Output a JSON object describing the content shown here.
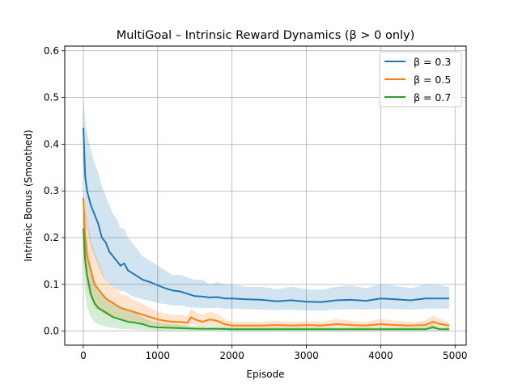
{
  "chart_data": {
    "type": "line",
    "title": "MultiGoal – Intrinsic Reward Dynamics (β > 0 only)",
    "xlabel": "Episode",
    "ylabel": "Intrinsic Bonus (Smoothed)",
    "xlim": [
      -250,
      5150
    ],
    "ylim": [
      -0.03,
      0.61
    ],
    "xticks": [
      0,
      1000,
      2000,
      3000,
      4000,
      5000
    ],
    "xtick_labels": [
      "0",
      "1000",
      "2000",
      "3000",
      "4000",
      "5000"
    ],
    "yticks": [
      0.0,
      0.1,
      0.2,
      0.3,
      0.4,
      0.5,
      0.6
    ],
    "ytick_labels": [
      "0.0",
      "0.1",
      "0.2",
      "0.3",
      "0.4",
      "0.5",
      "0.6"
    ],
    "grid": true,
    "legend_position": "top-right",
    "series": [
      {
        "name": "β = 0.3",
        "color": "#1f77b4",
        "x": [
          0,
          25,
          50,
          100,
          150,
          200,
          250,
          300,
          350,
          400,
          450,
          500,
          550,
          600,
          650,
          700,
          750,
          800,
          900,
          1000,
          1100,
          1200,
          1300,
          1400,
          1500,
          1600,
          1700,
          1800,
          1900,
          2000,
          2200,
          2400,
          2600,
          2800,
          3000,
          3200,
          3400,
          3600,
          3800,
          4000,
          4200,
          4400,
          4600,
          4800,
          4920
        ],
        "y": [
          0.435,
          0.33,
          0.3,
          0.27,
          0.25,
          0.23,
          0.2,
          0.19,
          0.17,
          0.16,
          0.15,
          0.14,
          0.145,
          0.13,
          0.125,
          0.12,
          0.115,
          0.11,
          0.105,
          0.098,
          0.092,
          0.087,
          0.085,
          0.08,
          0.075,
          0.074,
          0.072,
          0.073,
          0.07,
          0.07,
          0.068,
          0.067,
          0.064,
          0.066,
          0.063,
          0.062,
          0.066,
          0.067,
          0.065,
          0.07,
          0.068,
          0.066,
          0.07,
          0.07,
          0.07
        ],
        "lower": [
          0.38,
          0.25,
          0.22,
          0.18,
          0.16,
          0.14,
          0.12,
          0.11,
          0.1,
          0.095,
          0.09,
          0.085,
          0.085,
          0.08,
          0.075,
          0.072,
          0.07,
          0.068,
          0.065,
          0.06,
          0.058,
          0.055,
          0.055,
          0.052,
          0.05,
          0.05,
          0.049,
          0.05,
          0.048,
          0.048,
          0.047,
          0.046,
          0.045,
          0.046,
          0.044,
          0.044,
          0.046,
          0.047,
          0.046,
          0.048,
          0.047,
          0.046,
          0.048,
          0.048,
          0.048
        ],
        "upper": [
          0.5,
          0.45,
          0.42,
          0.39,
          0.36,
          0.34,
          0.31,
          0.29,
          0.27,
          0.25,
          0.24,
          0.22,
          0.22,
          0.2,
          0.19,
          0.18,
          0.17,
          0.16,
          0.15,
          0.14,
          0.13,
          0.12,
          0.12,
          0.115,
          0.11,
          0.11,
          0.1,
          0.105,
          0.1,
          0.1,
          0.095,
          0.095,
          0.09,
          0.095,
          0.09,
          0.088,
          0.095,
          0.098,
          0.092,
          0.1,
          0.097,
          0.092,
          0.1,
          0.098,
          0.095
        ]
      },
      {
        "name": "β = 0.5",
        "color": "#ff7f0e",
        "x": [
          0,
          25,
          50,
          100,
          150,
          200,
          250,
          300,
          350,
          400,
          450,
          500,
          600,
          700,
          800,
          900,
          1000,
          1100,
          1200,
          1300,
          1400,
          1450,
          1500,
          1600,
          1700,
          1800,
          1900,
          2000,
          2200,
          2400,
          2600,
          2800,
          3000,
          3200,
          3400,
          3600,
          3800,
          4000,
          4200,
          4400,
          4600,
          4700,
          4800,
          4920
        ],
        "y": [
          0.285,
          0.2,
          0.16,
          0.13,
          0.1,
          0.09,
          0.08,
          0.07,
          0.065,
          0.06,
          0.055,
          0.05,
          0.045,
          0.04,
          0.035,
          0.03,
          0.025,
          0.022,
          0.02,
          0.02,
          0.018,
          0.03,
          0.025,
          0.02,
          0.025,
          0.022,
          0.015,
          0.012,
          0.012,
          0.012,
          0.013,
          0.012,
          0.013,
          0.012,
          0.015,
          0.013,
          0.012,
          0.015,
          0.013,
          0.012,
          0.013,
          0.02,
          0.015,
          0.012
        ],
        "lower": [
          0.21,
          0.12,
          0.09,
          0.07,
          0.05,
          0.045,
          0.04,
          0.035,
          0.033,
          0.03,
          0.028,
          0.025,
          0.022,
          0.02,
          0.017,
          0.014,
          0.012,
          0.01,
          0.009,
          0.009,
          0.008,
          0.015,
          0.012,
          0.009,
          0.012,
          0.01,
          0.007,
          0.006,
          0.006,
          0.006,
          0.007,
          0.006,
          0.007,
          0.006,
          0.008,
          0.007,
          0.006,
          0.008,
          0.007,
          0.006,
          0.007,
          0.01,
          0.008,
          0.006
        ],
        "upper": [
          0.31,
          0.27,
          0.24,
          0.2,
          0.17,
          0.15,
          0.13,
          0.11,
          0.1,
          0.095,
          0.09,
          0.08,
          0.075,
          0.065,
          0.058,
          0.05,
          0.042,
          0.038,
          0.035,
          0.035,
          0.032,
          0.05,
          0.042,
          0.035,
          0.042,
          0.038,
          0.026,
          0.02,
          0.02,
          0.02,
          0.022,
          0.02,
          0.022,
          0.02,
          0.026,
          0.022,
          0.02,
          0.026,
          0.022,
          0.02,
          0.022,
          0.034,
          0.026,
          0.02
        ]
      },
      {
        "name": "β = 0.7",
        "color": "#2ca02c",
        "x": [
          0,
          25,
          50,
          100,
          150,
          200,
          250,
          300,
          350,
          400,
          500,
          600,
          700,
          800,
          900,
          1000,
          1200,
          1400,
          1600,
          1800,
          2000,
          2200,
          2400,
          2600,
          2800,
          3000,
          3200,
          3400,
          3600,
          3800,
          4000,
          4200,
          4400,
          4600,
          4700,
          4800,
          4920
        ],
        "y": [
          0.22,
          0.15,
          0.12,
          0.08,
          0.06,
          0.05,
          0.045,
          0.04,
          0.035,
          0.03,
          0.025,
          0.02,
          0.018,
          0.015,
          0.01,
          0.008,
          0.007,
          0.006,
          0.005,
          0.005,
          0.004,
          0.004,
          0.004,
          0.004,
          0.004,
          0.004,
          0.004,
          0.004,
          0.004,
          0.004,
          0.004,
          0.004,
          0.004,
          0.004,
          0.008,
          0.004,
          0.004
        ],
        "lower": [
          0.16,
          0.08,
          0.05,
          0.03,
          0.02,
          0.015,
          0.012,
          0.01,
          0.008,
          0.007,
          0.005,
          0.004,
          0.003,
          0.003,
          0.002,
          0.001,
          0.001,
          0.001,
          0.001,
          0.001,
          0.0,
          0.0,
          0.0,
          0.0,
          0.0,
          0.0,
          0.0,
          0.0,
          0.0,
          0.0,
          0.0,
          0.0,
          0.0,
          0.0,
          0.0,
          0.0,
          0.0
        ],
        "upper": [
          0.26,
          0.22,
          0.19,
          0.14,
          0.11,
          0.09,
          0.08,
          0.07,
          0.065,
          0.06,
          0.05,
          0.045,
          0.04,
          0.03,
          0.022,
          0.018,
          0.015,
          0.012,
          0.01,
          0.01,
          0.008,
          0.008,
          0.008,
          0.008,
          0.008,
          0.008,
          0.008,
          0.008,
          0.008,
          0.008,
          0.008,
          0.008,
          0.008,
          0.008,
          0.015,
          0.008,
          0.008
        ]
      }
    ]
  }
}
